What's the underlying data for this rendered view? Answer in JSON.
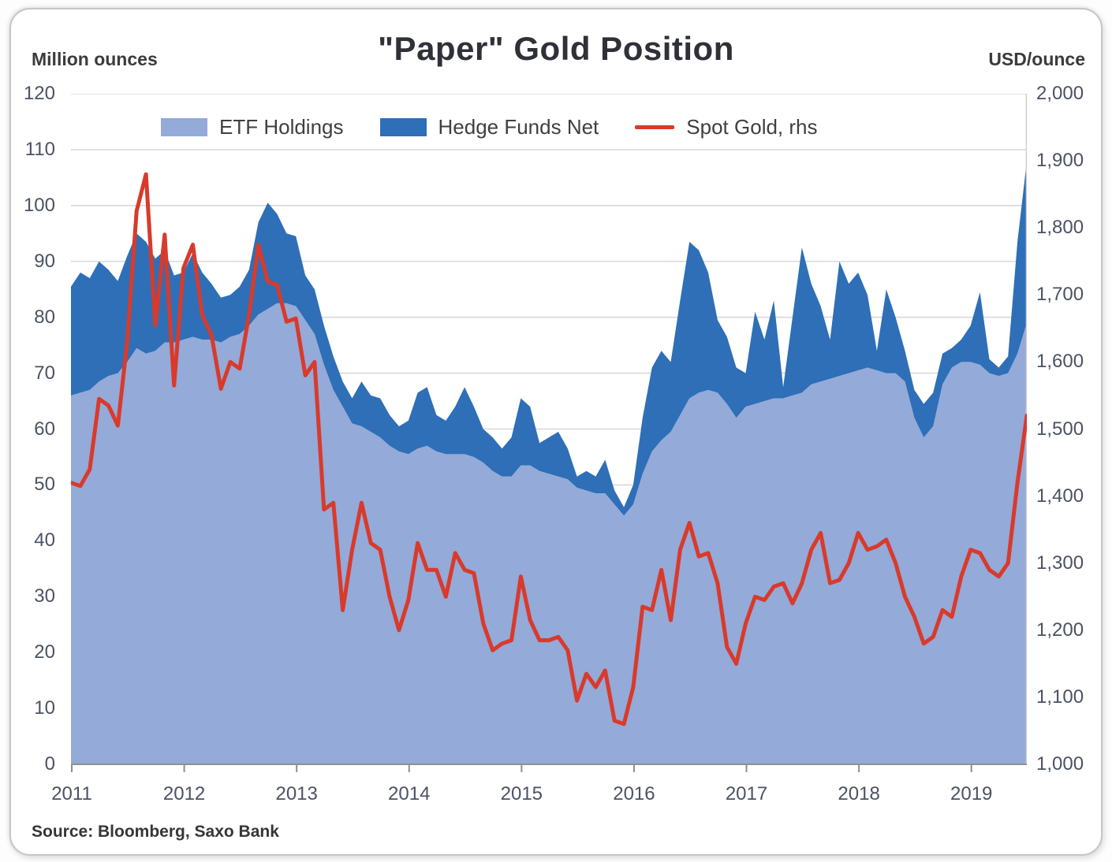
{
  "header": {
    "title": "\"Paper\" Gold Position",
    "left_axis_unit": "Million ounces",
    "right_axis_unit": "USD/ounce"
  },
  "source": "Source: Bloomberg, Saxo Bank",
  "colors": {
    "etf_area": "#94aad8",
    "hedge_area": "#2e6fb7",
    "spot_line": "#d93a2b",
    "gridline": "#d8d8d8",
    "axis_line": "#8f8f8f",
    "right_axis_line": "#cccccc",
    "tick_text": "#4b5263"
  },
  "legend": [
    {
      "label": "ETF Holdings",
      "swatch": "area",
      "color": "#94aad8"
    },
    {
      "label": "Hedge Funds Net",
      "swatch": "area",
      "color": "#2e6fb7"
    },
    {
      "label": "Spot Gold, rhs",
      "swatch": "line",
      "color": "#d93a2b"
    }
  ],
  "chart_data": {
    "type": "area",
    "title": "\"Paper\" Gold Position",
    "grid": true,
    "legend_position": "top-center",
    "x": {
      "start_year": 2011.0,
      "end_year": 2019.5,
      "step_months": 1,
      "tick_years": [
        2011,
        2012,
        2013,
        2014,
        2015,
        2016,
        2017,
        2018,
        2019
      ],
      "tick_labels": [
        "2011",
        "2012",
        "2013",
        "2014",
        "2015",
        "2016",
        "2017",
        "2018",
        "2019"
      ]
    },
    "y_left": {
      "label": "Million ounces",
      "min": 0,
      "max": 120,
      "tick_step": 10,
      "tick_labels": [
        "0",
        "10",
        "20",
        "30",
        "40",
        "50",
        "60",
        "70",
        "80",
        "90",
        "100",
        "110",
        "120"
      ]
    },
    "y_right": {
      "label": "USD/ounce",
      "min": 1000,
      "max": 2000,
      "tick_step": 100,
      "tick_labels": [
        "1,000",
        "1,100",
        "1,200",
        "1,300",
        "1,400",
        "1,500",
        "1,600",
        "1,700",
        "1,800",
        "1,900",
        "2,000"
      ]
    },
    "series": [
      {
        "name": "ETF Holdings",
        "type": "area",
        "stacked": true,
        "axis": "left",
        "color": "#94aad8",
        "values": [
          66,
          66.5,
          67,
          68.5,
          69.5,
          70,
          72,
          74.5,
          73.5,
          74,
          75.5,
          75.5,
          76,
          76.5,
          76,
          76,
          75.5,
          76.5,
          77,
          78.5,
          80.5,
          81.5,
          82.5,
          82.5,
          82,
          79.5,
          77,
          71.5,
          67,
          64,
          61,
          60.5,
          59.5,
          58.5,
          57,
          56,
          55.5,
          56.5,
          57,
          56,
          55.5,
          55.5,
          55.5,
          55,
          54,
          52.5,
          51.5,
          51.5,
          53.5,
          53.5,
          52.5,
          52,
          51.5,
          51,
          49.5,
          49,
          48.5,
          48.5,
          46.5,
          44.5,
          46.5,
          52,
          56,
          58,
          59.5,
          62.5,
          65.5,
          66.5,
          67,
          66.5,
          64.5,
          62,
          64,
          64.5,
          65,
          65.5,
          65.5,
          66,
          66.5,
          68,
          68.5,
          69,
          69.5,
          70,
          70.5,
          71,
          70.5,
          70,
          70,
          68.5,
          62,
          58.5,
          60.5,
          68,
          71,
          72,
          72,
          71.5,
          70,
          69.5,
          70,
          73.5,
          79
        ]
      },
      {
        "name": "Hedge Funds Net",
        "type": "area",
        "stacked": true,
        "axis": "left",
        "color": "#2e6fb7",
        "values": [
          19.5,
          21.5,
          20,
          21.5,
          19,
          16.5,
          19,
          20.5,
          20,
          16.5,
          16.5,
          12,
          12,
          15,
          12,
          10,
          8,
          7.5,
          8.5,
          10,
          16.5,
          19,
          16,
          12.5,
          12.5,
          8,
          8,
          7,
          6,
          4.5,
          4.5,
          8,
          6.5,
          7,
          5.5,
          4.5,
          6,
          10,
          10.5,
          6.5,
          6,
          8.5,
          12,
          9,
          6,
          6,
          5,
          7,
          12,
          10.5,
          5,
          6.5,
          8,
          5.5,
          2,
          3.5,
          3,
          6,
          2.5,
          1.5,
          3.5,
          10,
          15,
          16,
          12.5,
          20.5,
          28,
          25.5,
          21,
          13,
          12,
          9,
          6,
          16.5,
          11,
          17.5,
          2,
          14,
          26,
          18,
          13.5,
          7,
          20.5,
          16,
          17.5,
          13,
          3.5,
          15,
          10,
          5.5,
          5,
          6,
          6,
          5.5,
          3.5,
          4,
          6.5,
          13,
          2.5,
          1.5,
          3,
          20,
          29
        ]
      },
      {
        "name": "Spot Gold, rhs",
        "type": "line",
        "stacked": false,
        "axis": "right",
        "color": "#d93a2b",
        "values": [
          1420,
          1415,
          1440,
          1545,
          1535,
          1505,
          1630,
          1825,
          1880,
          1655,
          1790,
          1565,
          1740,
          1775,
          1670,
          1640,
          1560,
          1600,
          1590,
          1670,
          1775,
          1720,
          1715,
          1660,
          1665,
          1580,
          1600,
          1380,
          1390,
          1230,
          1320,
          1390,
          1330,
          1320,
          1250,
          1200,
          1245,
          1330,
          1290,
          1290,
          1250,
          1315,
          1290,
          1285,
          1210,
          1170,
          1180,
          1185,
          1280,
          1215,
          1185,
          1185,
          1190,
          1170,
          1095,
          1135,
          1115,
          1140,
          1065,
          1060,
          1115,
          1235,
          1230,
          1290,
          1215,
          1320,
          1360,
          1310,
          1315,
          1270,
          1175,
          1150,
          1210,
          1250,
          1245,
          1265,
          1270,
          1240,
          1270,
          1320,
          1345,
          1270,
          1275,
          1300,
          1345,
          1320,
          1325,
          1335,
          1300,
          1250,
          1220,
          1180,
          1190,
          1230,
          1220,
          1280,
          1320,
          1315,
          1290,
          1280,
          1300,
          1420,
          1520
        ]
      }
    ]
  }
}
